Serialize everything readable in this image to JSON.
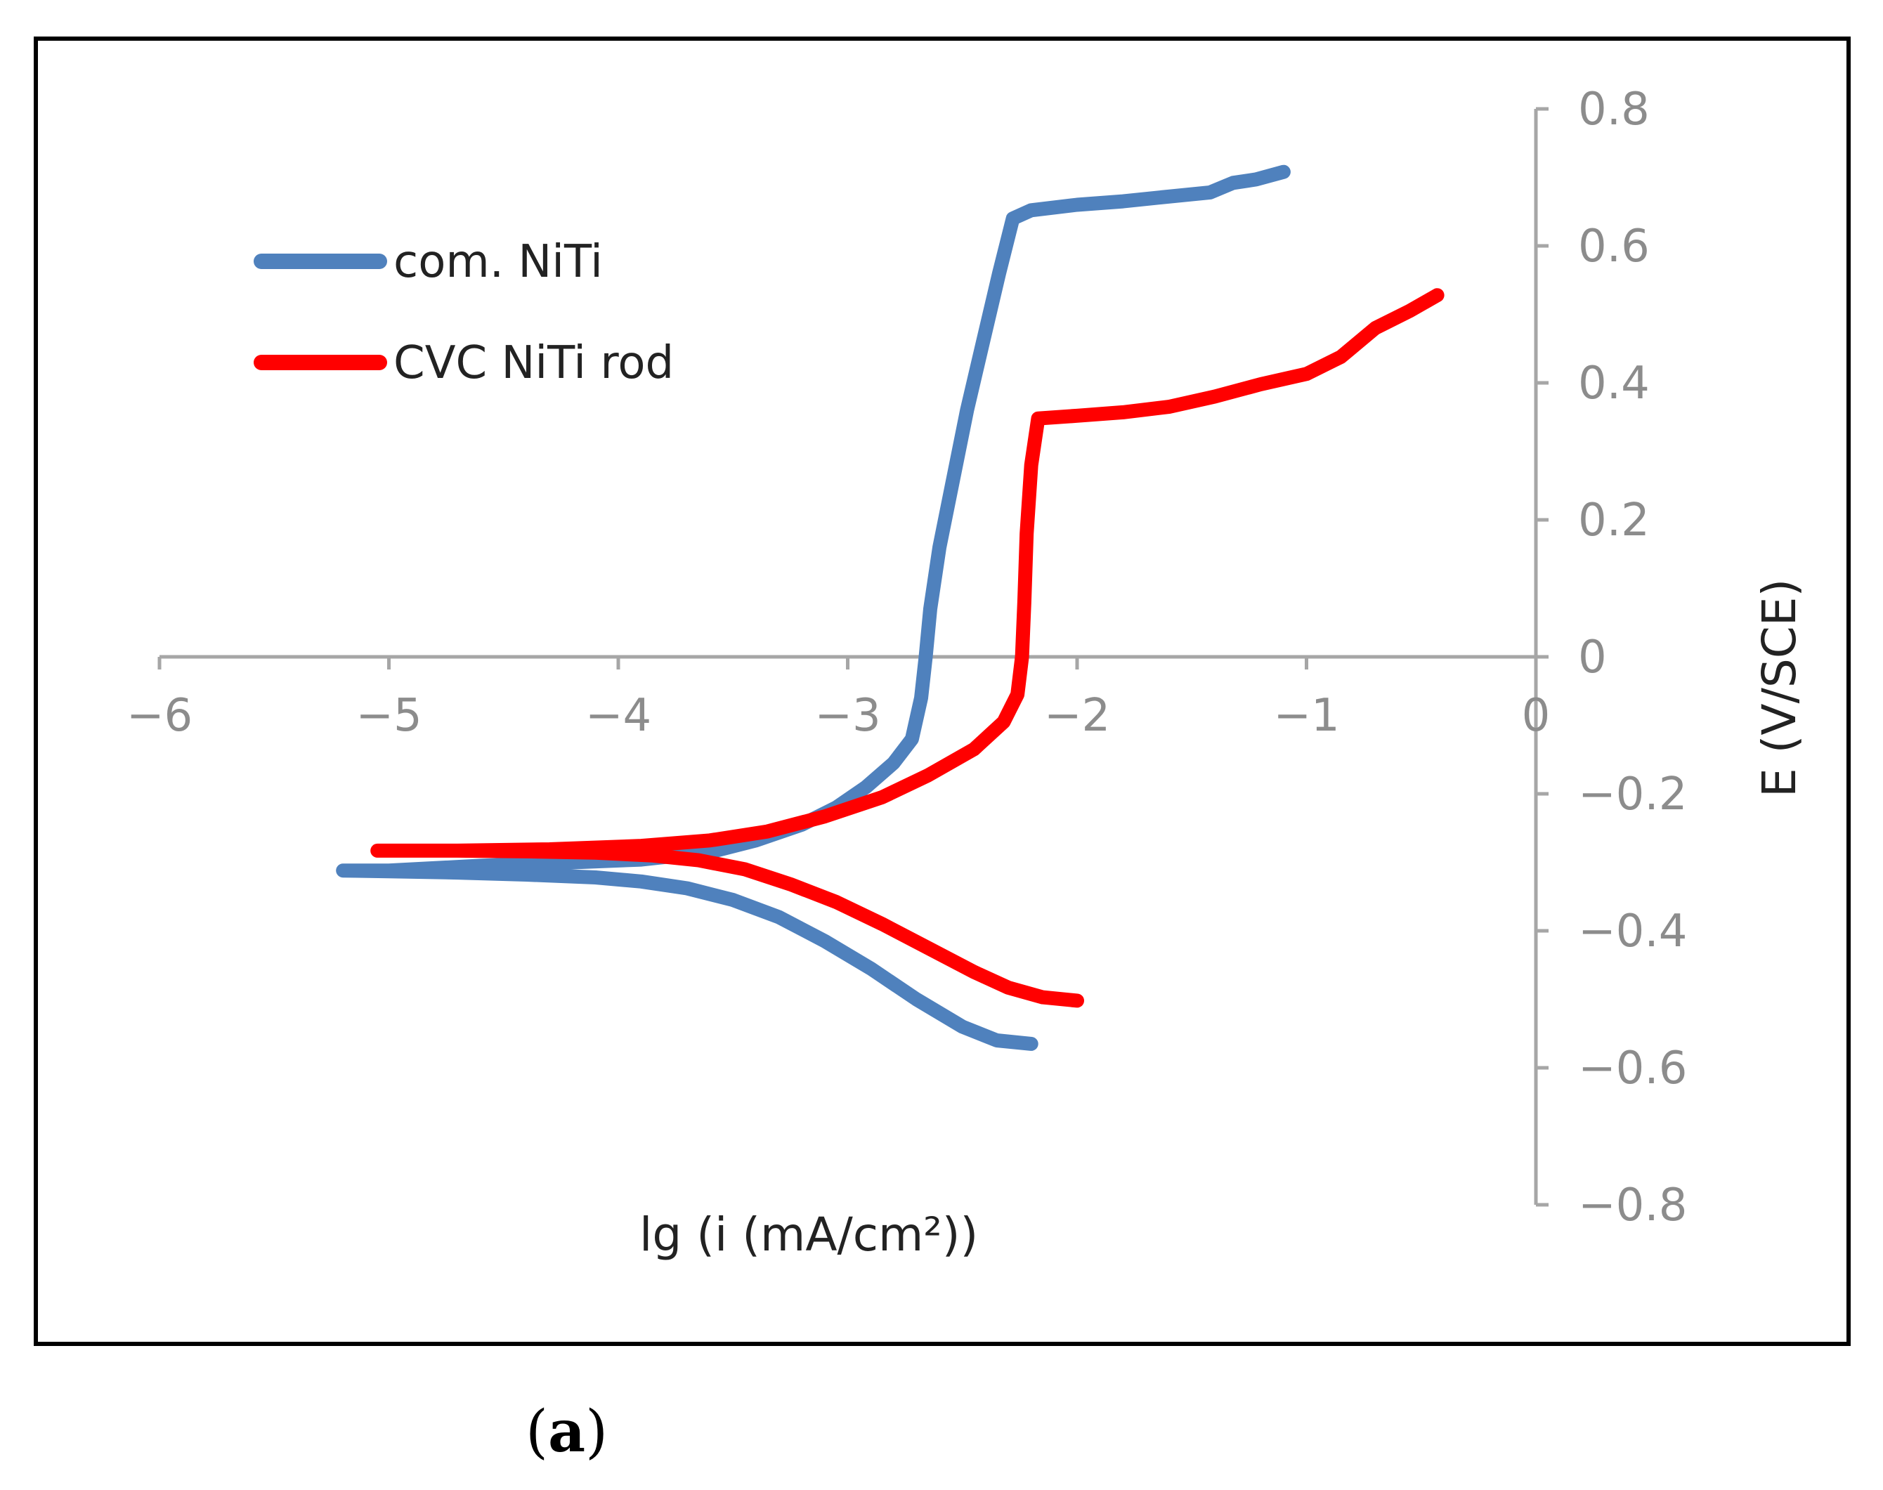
{
  "chart_data": {
    "type": "line",
    "title": "",
    "xlabel": "lg (i (mA/cm²))",
    "ylabel": "E (V/SCE)",
    "xlim": [
      -6,
      0
    ],
    "ylim": [
      -0.8,
      0.8
    ],
    "x_ticks": [
      "−6",
      "−5",
      "−4",
      "−3",
      "−2",
      "−1",
      "0"
    ],
    "y_ticks": [
      "0.8",
      "0.6",
      "0.4",
      "0.2",
      "0",
      "−0.2",
      "−0.4",
      "−0.6",
      "−0.8"
    ],
    "legend_position": "top-left",
    "series": [
      {
        "name": "com. NiTi",
        "color": "#4f81bd",
        "points": [
          [
            -2.2,
            -0.565
          ],
          [
            -2.35,
            -0.56
          ],
          [
            -2.5,
            -0.54
          ],
          [
            -2.7,
            -0.5
          ],
          [
            -2.9,
            -0.455
          ],
          [
            -3.1,
            -0.415
          ],
          [
            -3.3,
            -0.38
          ],
          [
            -3.5,
            -0.355
          ],
          [
            -3.7,
            -0.338
          ],
          [
            -3.9,
            -0.328
          ],
          [
            -4.1,
            -0.322
          ],
          [
            -4.4,
            -0.318
          ],
          [
            -4.7,
            -0.315
          ],
          [
            -5.0,
            -0.313
          ],
          [
            -5.2,
            -0.312
          ],
          [
            -5.0,
            -0.312
          ],
          [
            -4.6,
            -0.305
          ],
          [
            -4.2,
            -0.3
          ],
          [
            -3.9,
            -0.296
          ],
          [
            -3.6,
            -0.285
          ],
          [
            -3.4,
            -0.268
          ],
          [
            -3.2,
            -0.245
          ],
          [
            -3.05,
            -0.22
          ],
          [
            -2.92,
            -0.19
          ],
          [
            -2.8,
            -0.155
          ],
          [
            -2.72,
            -0.12
          ],
          [
            -2.68,
            -0.06
          ],
          [
            -2.66,
            0.0
          ],
          [
            -2.64,
            0.07
          ],
          [
            -2.6,
            0.16
          ],
          [
            -2.54,
            0.26
          ],
          [
            -2.48,
            0.36
          ],
          [
            -2.41,
            0.46
          ],
          [
            -2.34,
            0.56
          ],
          [
            -2.28,
            0.64
          ],
          [
            -2.2,
            0.652
          ],
          [
            -2.0,
            0.66
          ],
          [
            -1.8,
            0.665
          ],
          [
            -1.6,
            0.672
          ],
          [
            -1.42,
            0.678
          ],
          [
            -1.32,
            0.692
          ],
          [
            -1.22,
            0.697
          ],
          [
            -1.1,
            0.708
          ]
        ]
      },
      {
        "name": "CVC NiTi rod",
        "color": "#ff0000",
        "points": [
          [
            -2.0,
            -0.502
          ],
          [
            -2.15,
            -0.497
          ],
          [
            -2.3,
            -0.483
          ],
          [
            -2.45,
            -0.46
          ],
          [
            -2.65,
            -0.425
          ],
          [
            -2.85,
            -0.39
          ],
          [
            -3.05,
            -0.358
          ],
          [
            -3.25,
            -0.332
          ],
          [
            -3.45,
            -0.31
          ],
          [
            -3.65,
            -0.297
          ],
          [
            -3.85,
            -0.29
          ],
          [
            -4.1,
            -0.286
          ],
          [
            -4.4,
            -0.284
          ],
          [
            -4.7,
            -0.283
          ],
          [
            -5.05,
            -0.283
          ],
          [
            -4.7,
            -0.283
          ],
          [
            -4.3,
            -0.281
          ],
          [
            -3.9,
            -0.276
          ],
          [
            -3.6,
            -0.268
          ],
          [
            -3.35,
            -0.255
          ],
          [
            -3.1,
            -0.233
          ],
          [
            -2.85,
            -0.205
          ],
          [
            -2.65,
            -0.173
          ],
          [
            -2.45,
            -0.135
          ],
          [
            -2.32,
            -0.095
          ],
          [
            -2.26,
            -0.055
          ],
          [
            -2.24,
            0.0
          ],
          [
            -2.23,
            0.08
          ],
          [
            -2.22,
            0.18
          ],
          [
            -2.2,
            0.28
          ],
          [
            -2.17,
            0.348
          ],
          [
            -2.0,
            0.352
          ],
          [
            -1.8,
            0.357
          ],
          [
            -1.6,
            0.365
          ],
          [
            -1.4,
            0.38
          ],
          [
            -1.2,
            0.398
          ],
          [
            -1.0,
            0.413
          ],
          [
            -0.85,
            0.438
          ],
          [
            -0.7,
            0.48
          ],
          [
            -0.55,
            0.505
          ],
          [
            -0.43,
            0.528
          ]
        ]
      }
    ]
  },
  "panel_label": "a"
}
